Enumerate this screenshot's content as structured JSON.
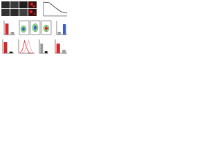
{
  "chart_data": [
    {
      "type": "line",
      "x": [
        0,
        1,
        2,
        3,
        4
      ],
      "values": [
        100,
        95,
        60,
        30,
        20
      ],
      "color": "#222222",
      "xlim": [
        0,
        4
      ],
      "ylim": [
        0,
        100
      ]
    },
    {
      "type": "bar",
      "categories": [
        null,
        null
      ],
      "values": [
        80,
        20
      ],
      "colors": [
        "#d62728",
        "#9a9a9a"
      ],
      "ylim": [
        0,
        100
      ]
    },
    {
      "type": "bar",
      "categories": [
        null,
        null
      ],
      "values": [
        20,
        75
      ],
      "colors": [
        "#9a9a9a",
        "#3b5fc0"
      ],
      "ylim": [
        0,
        100
      ]
    },
    {
      "type": "bar",
      "categories": [
        null,
        null
      ],
      "values": [
        80,
        12
      ],
      "colors": [
        "#d62728",
        "#222222"
      ],
      "ylim": [
        0,
        100
      ]
    },
    {
      "type": "line",
      "x": [
        0,
        1,
        2,
        3,
        4,
        5,
        6,
        7,
        8
      ],
      "xlim": [
        0,
        8
      ],
      "ylim": [
        0,
        100
      ],
      "series": [
        {
          "name": null,
          "color": "#d62728",
          "values": [
            0,
            5,
            30,
            90,
            40,
            8,
            2,
            0,
            0
          ]
        },
        {
          "name": null,
          "color": "#f4a3b8",
          "values": [
            0,
            0,
            3,
            15,
            50,
            95,
            40,
            5,
            0
          ]
        }
      ]
    },
    {
      "type": "bar",
      "categories": [
        null,
        null
      ],
      "values": [
        70,
        15
      ],
      "colors": [
        "#9a9a9a",
        "#222222"
      ],
      "ylim": [
        0,
        100
      ]
    },
    {
      "type": "bar",
      "categories": [
        null,
        null
      ],
      "values": [
        70,
        25
      ],
      "colors": [
        "#d62728",
        "#9a9a9a"
      ],
      "ylim": [
        0,
        100
      ]
    }
  ]
}
